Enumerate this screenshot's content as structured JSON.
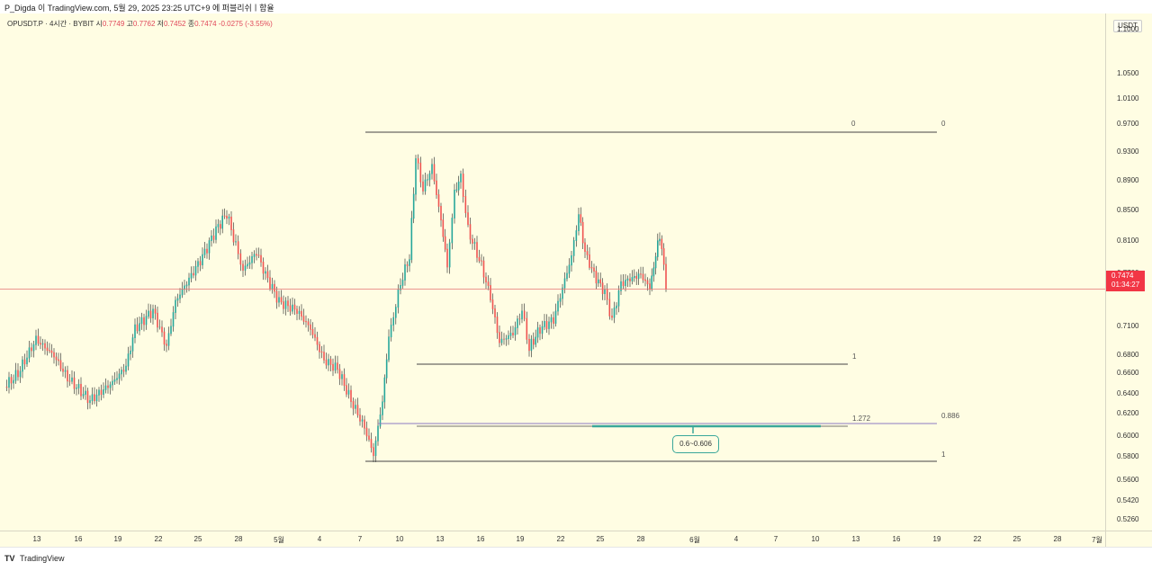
{
  "header": {
    "publish_line": "P_Digda 이 TradingView.com, 5월 29, 2025 23:25 UTC+9 에 퍼블리쉬ㅣ함율"
  },
  "legend": {
    "symbol": "OPUSDT.P · 4시간 · BYBIT",
    "open_label": "시",
    "open": "0.7749",
    "high_label": "고",
    "high": "0.7762",
    "low_label": "저",
    "low": "0.7452",
    "close_label": "종",
    "close": "0.7474",
    "change": "-0.0275 (-3.55%)"
  },
  "price_axis": {
    "unit": "USDT",
    "ticks": [
      "1.1000",
      "1.0500",
      "1.0100",
      "0.9700",
      "0.9300",
      "0.8900",
      "0.8500",
      "0.8100",
      "0.7700",
      "0.7100",
      "0.6800",
      "0.6600",
      "0.6400",
      "0.6200",
      "0.6000",
      "0.5800",
      "0.5600",
      "0.5420",
      "0.5260"
    ],
    "last_price": "0.7474",
    "countdown": "01:34:27"
  },
  "time_axis": {
    "ticks": [
      "13",
      "16",
      "19",
      "22",
      "25",
      "28",
      "5월",
      "4",
      "7",
      "10",
      "13",
      "16",
      "19",
      "22",
      "25",
      "28",
      "6월",
      "4",
      "7",
      "10",
      "13",
      "16",
      "19",
      "22",
      "25",
      "28",
      "7월"
    ]
  },
  "drawings": {
    "fib_top_left": "0",
    "fib_top_right": "0",
    "fib_one_mid": "1",
    "fib_1272": "1.272",
    "fib_0886": "0.886",
    "fib_one_bottom": "1",
    "target_zone": "0.6~0.606"
  },
  "colors": {
    "background": "#fffde3",
    "up_candle": "#26a69a",
    "down_candle": "#ef5350",
    "last_price_badge": "#f23645",
    "zone": "#3aa79a"
  },
  "footer": {
    "logo": "TV",
    "brand": "TradingView"
  }
}
